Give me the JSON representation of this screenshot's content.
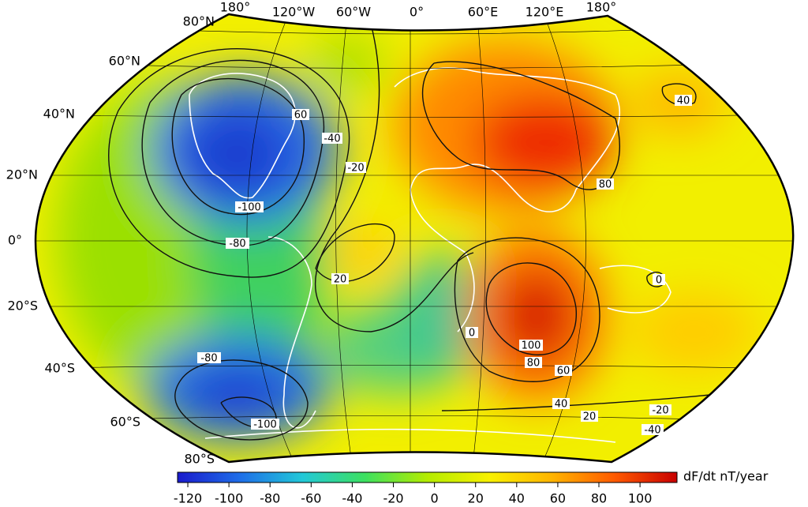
{
  "lat_labels": [
    "80°N",
    "60°N",
    "40°N",
    "20°N",
    "0°",
    "20°S",
    "40°S",
    "60°S",
    "80°S"
  ],
  "lon_labels": [
    "180°",
    "120°W",
    "60°W",
    "0°",
    "60°E",
    "120°E",
    "180°"
  ],
  "contour_labels": [
    "60",
    "-40",
    "-20",
    "40",
    "80",
    "-100",
    "-80",
    "20",
    "0",
    "0",
    "100",
    "80",
    "60",
    "40",
    "20",
    "-20",
    "-40",
    "-80",
    "-100"
  ],
  "colorbar": {
    "label": "dF/dt nT/year",
    "range": [
      -125,
      118
    ],
    "ticks": [
      -120,
      -100,
      -80,
      -60,
      -40,
      -20,
      0,
      20,
      40,
      60,
      80,
      100
    ],
    "colors": [
      "#1a1acc",
      "#1e6ee8",
      "#22c8d8",
      "#3ce060",
      "#b4ec00",
      "#f8f000",
      "#ffb400",
      "#ff5a00",
      "#c80000"
    ]
  }
}
